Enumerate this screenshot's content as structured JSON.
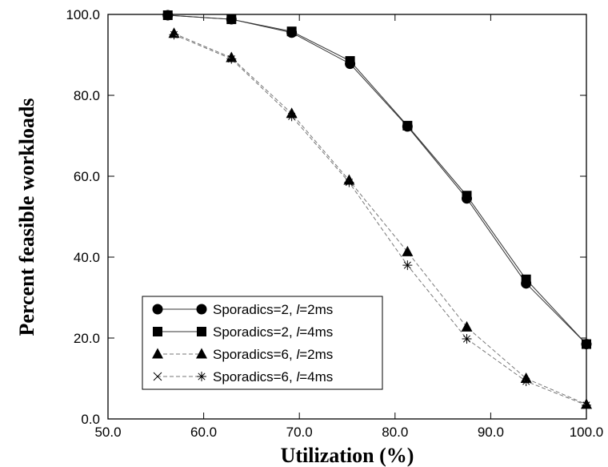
{
  "chart_data": {
    "type": "line",
    "title": "",
    "xlabel": "Utilization (%)",
    "ylabel": "Percent feasible workloads",
    "xlim": [
      50,
      100
    ],
    "ylim": [
      0,
      100
    ],
    "x_ticks": [
      "50.0",
      "60.0",
      "70.0",
      "80.0",
      "90.0",
      "100.0"
    ],
    "y_ticks": [
      "0.0",
      "20.0",
      "40.0",
      "60.0",
      "80.0",
      "100.0"
    ],
    "grid": false,
    "legend_position": "bottom-left",
    "series": [
      {
        "legend_prefix": "Sporadics=2, ",
        "legend_var": "l",
        "legend_suffix": "=2ms",
        "marker": "circle",
        "dashed": false,
        "x": [
          56.25,
          62.9,
          69.2,
          75.3,
          81.3,
          87.5,
          93.7,
          100
        ],
        "y": [
          99.8,
          98.8,
          95.5,
          87.8,
          72.3,
          54.5,
          33.5,
          18.5
        ]
      },
      {
        "legend_prefix": "Sporadics=2, ",
        "legend_var": "l",
        "legend_suffix": "=4ms",
        "marker": "square",
        "dashed": false,
        "x": [
          56.25,
          62.9,
          69.2,
          75.3,
          81.3,
          87.5,
          93.7,
          100
        ],
        "y": [
          99.8,
          98.8,
          95.8,
          88.5,
          72.5,
          55.2,
          34.5,
          18.5
        ]
      },
      {
        "legend_prefix": "Sporadics=6, ",
        "legend_var": "l",
        "legend_suffix": "=2ms",
        "marker": "triangle",
        "dashed": true,
        "x": [
          56.9,
          62.9,
          69.2,
          75.2,
          81.3,
          87.5,
          93.7,
          100
        ],
        "y": [
          95.3,
          89.3,
          75.5,
          59.0,
          41.3,
          22.7,
          10.0,
          3.6
        ]
      },
      {
        "legend_prefix": "Sporadics=6, ",
        "legend_var": "l",
        "legend_suffix": "=4ms",
        "marker": "asterisk",
        "dashed": true,
        "x": [
          56.9,
          62.9,
          69.2,
          75.2,
          81.3,
          87.5,
          93.7,
          100
        ],
        "y": [
          95.0,
          89.0,
          74.8,
          58.5,
          38.0,
          19.8,
          9.3,
          3.4
        ]
      }
    ]
  }
}
